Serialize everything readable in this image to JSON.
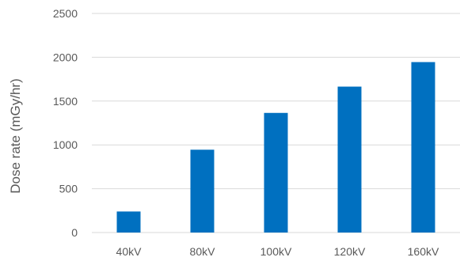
{
  "chart_data": {
    "type": "bar",
    "title": "",
    "xlabel": "",
    "ylabel": "Dose rate (mGy/hr)",
    "categories": [
      "40kV",
      "80kV",
      "100kV",
      "120kV",
      "160kV"
    ],
    "series": [
      {
        "values": [
          240,
          945,
          1365,
          1665,
          1945
        ]
      }
    ],
    "ylim": [
      0,
      2500
    ],
    "yticks": [
      0,
      500,
      1000,
      1500,
      2000,
      2500
    ],
    "grid": true,
    "legend": "none",
    "colors": {
      "bar": "#0070C0",
      "grid": "#D9D9D9",
      "text": "#595959"
    }
  }
}
